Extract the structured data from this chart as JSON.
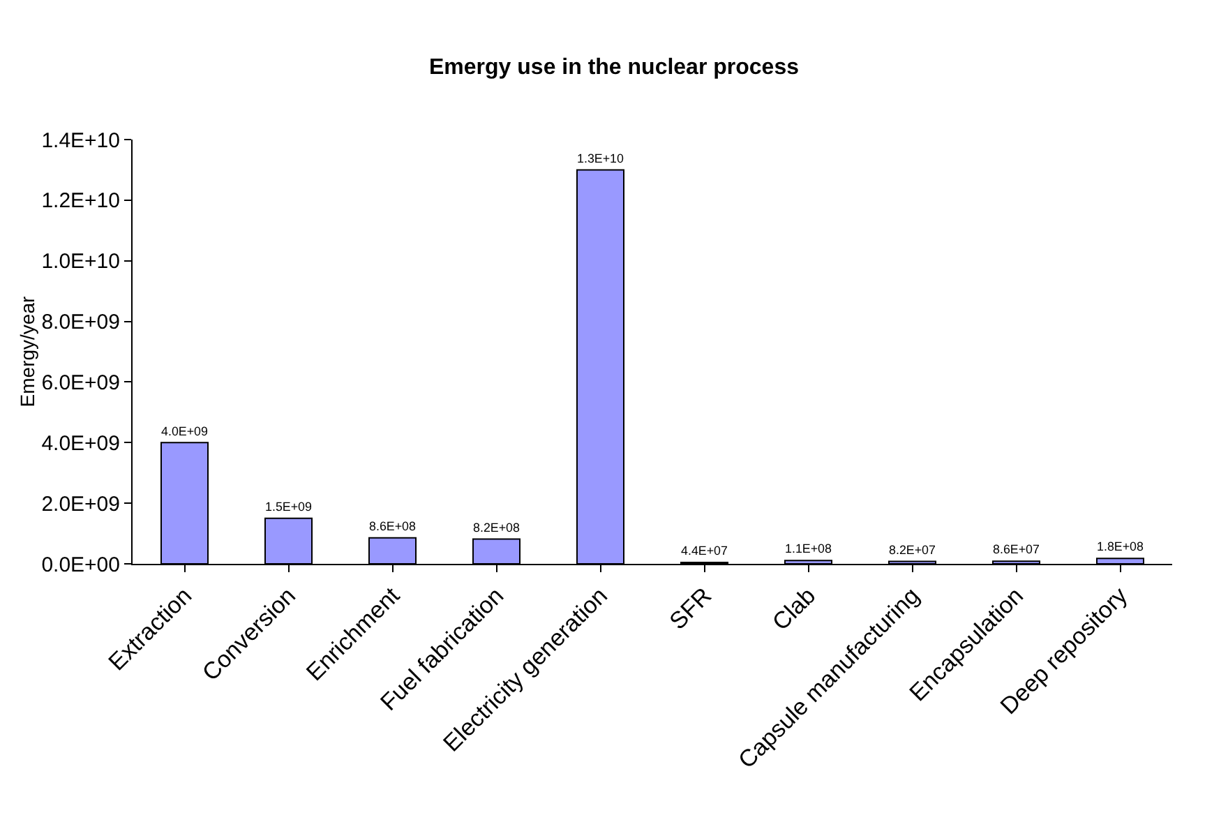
{
  "chart_data": {
    "type": "bar",
    "title": "Emergy use in the nuclear process",
    "ylabel": "Emergy/year",
    "categories": [
      "Extraction",
      "Conversion",
      "Enrichment",
      "Fuel fabrication",
      "Electricity generation",
      "SFR",
      "Clab",
      "Capsule manufacturing",
      "Encapsulation",
      "Deep repository"
    ],
    "values": [
      4000000000.0,
      1500000000.0,
      860000000.0,
      820000000.0,
      13000000000.0,
      44000000.0,
      110000000.0,
      82000000.0,
      86000000.0,
      180000000.0
    ],
    "value_labels": [
      "4.0E+09",
      "1.5E+09",
      "8.6E+08",
      "8.2E+08",
      "1.3E+10",
      "4.4E+07",
      "1.1E+08",
      "8.2E+07",
      "8.6E+07",
      "1.8E+08"
    ],
    "color": "#9999ff",
    "ylim": [
      0,
      14000000000.0
    ],
    "yticks": [
      {
        "value": 0,
        "label": "0.0E+00"
      },
      {
        "value": 2000000000.0,
        "label": "2.0E+09"
      },
      {
        "value": 4000000000.0,
        "label": "4.0E+09"
      },
      {
        "value": 6000000000.0,
        "label": "6.0E+09"
      },
      {
        "value": 8000000000.0,
        "label": "8.0E+09"
      },
      {
        "value": 10000000000.0,
        "label": "1.0E+10"
      },
      {
        "value": 12000000000.0,
        "label": "1.2E+10"
      },
      {
        "value": 14000000000.0,
        "label": "1.4E+10"
      }
    ],
    "grid": false,
    "legend": false
  }
}
